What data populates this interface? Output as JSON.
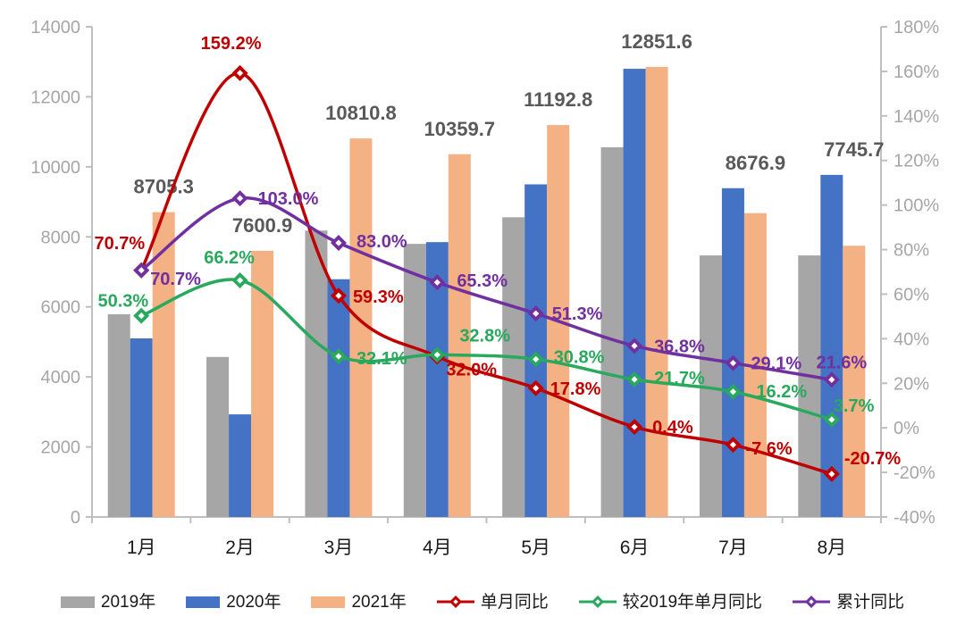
{
  "chart_data": {
    "type": "combo-bar-line",
    "title": "",
    "categories": [
      "1月",
      "2月",
      "3月",
      "4月",
      "5月",
      "6月",
      "7月",
      "8月"
    ],
    "bar_series": [
      {
        "name": "2019年",
        "color": "#a6a6a6",
        "values": [
          5790,
          4570,
          8180,
          7800,
          8560,
          10560,
          7470,
          7470
        ]
      },
      {
        "name": "2020年",
        "color": "#4472c4",
        "values": [
          5100,
          2930,
          6790,
          7850,
          9500,
          12800,
          9390,
          9770
        ]
      },
      {
        "name": "2021年",
        "color": "#f4b183",
        "values": [
          8705.3,
          7600.9,
          10810.8,
          10359.7,
          11192.8,
          12851.6,
          8676.9,
          7745.7
        ],
        "labels": [
          "8705.3",
          "7600.9",
          "10810.8",
          "10359.7",
          "11192.8",
          "12851.6",
          "8676.9",
          "7745.7"
        ]
      }
    ],
    "line_series": [
      {
        "name": "单月同比",
        "color": "#c00000",
        "values": [
          70.7,
          159.2,
          59.3,
          32.0,
          17.8,
          0.4,
          -7.6,
          -20.7
        ],
        "labels": [
          "70.7%",
          "159.2%",
          "59.3%",
          "32.0%",
          "17.8%",
          "0.4%",
          "-7.6%",
          "-20.7%"
        ]
      },
      {
        "name": "较2019年单月同比",
        "color": "#28a95e",
        "values": [
          50.3,
          66.2,
          32.1,
          32.8,
          30.8,
          21.7,
          16.2,
          3.7
        ],
        "labels": [
          "50.3%",
          "66.2%",
          "32.1%",
          "32.8%",
          "30.8%",
          "21.7%",
          "16.2%",
          "3.7%"
        ]
      },
      {
        "name": "累计同比",
        "color": "#7030a0",
        "values": [
          70.7,
          103.0,
          83.0,
          65.3,
          51.3,
          36.8,
          29.1,
          21.6
        ],
        "labels": [
          "70.7%",
          "103.0%",
          "83.0%",
          "65.3%",
          "51.3%",
          "36.8%",
          "29.1%",
          "21.6%"
        ]
      }
    ],
    "left_axis": {
      "min": 0,
      "max": 14000,
      "step": 2000,
      "ticks": [
        "0",
        "2000",
        "4000",
        "6000",
        "8000",
        "10000",
        "12000",
        "14000"
      ]
    },
    "right_axis": {
      "min": -40,
      "max": 180,
      "step": 20,
      "ticks": [
        "-40%",
        "-20%",
        "0%",
        "20%",
        "40%",
        "60%",
        "80%",
        "100%",
        "120%",
        "140%",
        "160%",
        "180%"
      ]
    },
    "style_colors": {
      "axis_line": "#bfbfbf",
      "axis_text": "#a6a6a6",
      "category_text": "#1a1a1a",
      "bar_value_text": "#595959"
    },
    "grid": "off",
    "legend_position": "bottom"
  }
}
